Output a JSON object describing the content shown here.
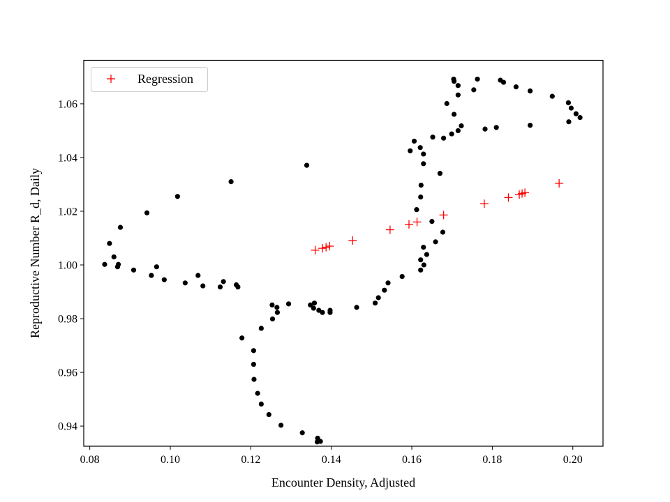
{
  "chart_data": {
    "type": "scatter",
    "title": "",
    "xlabel": "Encounter Density, Adjusted",
    "ylabel": "Reproductive Number R_d, Daily",
    "xlim": [
      0.0785,
      0.2075
    ],
    "ylim": [
      0.9325,
      1.0762
    ],
    "xticks": [
      0.08,
      0.1,
      0.12,
      0.14,
      0.16,
      0.18,
      0.2
    ],
    "xtick_labels": [
      "0.08",
      "0.10",
      "0.12",
      "0.14",
      "0.16",
      "0.18",
      "0.20"
    ],
    "yticks": [
      0.94,
      0.96,
      0.98,
      1.0,
      1.02,
      1.04,
      1.06
    ],
    "ytick_labels": [
      "0.94",
      "0.96",
      "0.98",
      "1.00",
      "1.02",
      "1.04",
      "1.06"
    ],
    "grid": false,
    "legend": {
      "position": "top-left",
      "entries": [
        "Regression"
      ]
    },
    "series": [
      {
        "marker": "dot",
        "color": "#000000",
        "points": [
          [
            0.0837,
            1.0002
          ],
          [
            0.0849,
            1.008
          ],
          [
            0.086,
            1.003
          ],
          [
            0.0869,
            0.9993
          ],
          [
            0.0871,
            1.0002
          ],
          [
            0.0876,
            1.014
          ],
          [
            0.0909,
            0.9981
          ],
          [
            0.0942,
            1.0194
          ],
          [
            0.0953,
            0.9961
          ],
          [
            0.0966,
            0.9993
          ],
          [
            0.0985,
            0.9945
          ],
          [
            0.1018,
            1.0255
          ],
          [
            0.1037,
            0.9933
          ],
          [
            0.1069,
            0.9961
          ],
          [
            0.1081,
            0.9922
          ],
          [
            0.1124,
            0.9918
          ],
          [
            0.1132,
            0.9938
          ],
          [
            0.1151,
            1.031
          ],
          [
            0.1164,
            0.9926
          ],
          [
            0.1168,
            0.9918
          ],
          [
            0.1178,
            0.9728
          ],
          [
            0.1207,
            0.9681
          ],
          [
            0.1207,
            0.963
          ],
          [
            0.1208,
            0.9574
          ],
          [
            0.1217,
            0.9522
          ],
          [
            0.1226,
            0.9764
          ],
          [
            0.1226,
            0.9482
          ],
          [
            0.1245,
            0.9443
          ],
          [
            0.1253,
            0.9851
          ],
          [
            0.1254,
            0.9799
          ],
          [
            0.1265,
            0.9842
          ],
          [
            0.1266,
            0.9823
          ],
          [
            0.1275,
            0.9403
          ],
          [
            0.1294,
            0.9855
          ],
          [
            0.1328,
            0.9375
          ],
          [
            0.1339,
            1.0371
          ],
          [
            0.1348,
            0.9851
          ],
          [
            0.1356,
            0.9839
          ],
          [
            0.1358,
            0.9858
          ],
          [
            0.1365,
            0.9341
          ],
          [
            0.1366,
            0.9355
          ],
          [
            0.1369,
            0.9831
          ],
          [
            0.1373,
            0.9343
          ],
          [
            0.1378,
            0.9823
          ],
          [
            0.1397,
            0.9831
          ],
          [
            0.1397,
            0.9823
          ],
          [
            0.1463,
            0.9842
          ],
          [
            0.1509,
            0.9858
          ],
          [
            0.1517,
            0.9878
          ],
          [
            0.1532,
            0.9906
          ],
          [
            0.1541,
            0.9933
          ],
          [
            0.1576,
            0.9957
          ],
          [
            0.1596,
            1.0425
          ],
          [
            0.1606,
            1.0461
          ],
          [
            0.1612,
            1.0206
          ],
          [
            0.1621,
            1.0437
          ],
          [
            0.1622,
            0.9981
          ],
          [
            0.1622,
            1.0019
          ],
          [
            0.1622,
            1.0253
          ],
          [
            0.1623,
            1.0297
          ],
          [
            0.1629,
            1.0066
          ],
          [
            0.1629,
            1.0413
          ],
          [
            0.1629,
            1.0377
          ],
          [
            0.163,
            1.0
          ],
          [
            0.1637,
            1.0039
          ],
          [
            0.165,
            1.0162
          ],
          [
            0.1652,
            1.0476
          ],
          [
            0.1659,
            1.0086
          ],
          [
            0.167,
            1.0341
          ],
          [
            0.1677,
            1.0122
          ],
          [
            0.1679,
            1.0472
          ],
          [
            0.1687,
            1.0601
          ],
          [
            0.1699,
            1.0488
          ],
          [
            0.1704,
            1.0692
          ],
          [
            0.1705,
            1.0561
          ],
          [
            0.1705,
            1.0684
          ],
          [
            0.1715,
            1.0668
          ],
          [
            0.1715,
            1.0633
          ],
          [
            0.1715,
            1.05
          ],
          [
            0.1723,
            1.0518
          ],
          [
            0.1754,
            1.0652
          ],
          [
            0.1763,
            1.0692
          ],
          [
            0.1782,
            1.0506
          ],
          [
            0.181,
            1.0512
          ],
          [
            0.182,
            1.0688
          ],
          [
            0.1828,
            1.068
          ],
          [
            0.1859,
            1.0663
          ],
          [
            0.1894,
            1.0648
          ],
          [
            0.1894,
            1.052
          ],
          [
            0.1949,
            1.0628
          ],
          [
            0.1989,
            1.0604
          ],
          [
            0.199,
            1.0533
          ],
          [
            0.1996,
            1.0584
          ],
          [
            0.2008,
            1.0563
          ],
          [
            0.2018,
            1.0549
          ]
        ]
      },
      {
        "name": "Regression",
        "marker": "plus",
        "color": "#ff0000",
        "points": [
          [
            0.136,
            1.0055
          ],
          [
            0.1378,
            1.0062
          ],
          [
            0.1387,
            1.0066
          ],
          [
            0.1396,
            1.007
          ],
          [
            0.1453,
            1.0091
          ],
          [
            0.1546,
            1.0131
          ],
          [
            0.1593,
            1.0151
          ],
          [
            0.1613,
            1.016
          ],
          [
            0.1679,
            1.0186
          ],
          [
            0.178,
            1.0228
          ],
          [
            0.184,
            1.0251
          ],
          [
            0.1867,
            1.0262
          ],
          [
            0.1874,
            1.0266
          ],
          [
            0.1881,
            1.0269
          ],
          [
            0.1966,
            1.0304
          ]
        ]
      }
    ]
  }
}
